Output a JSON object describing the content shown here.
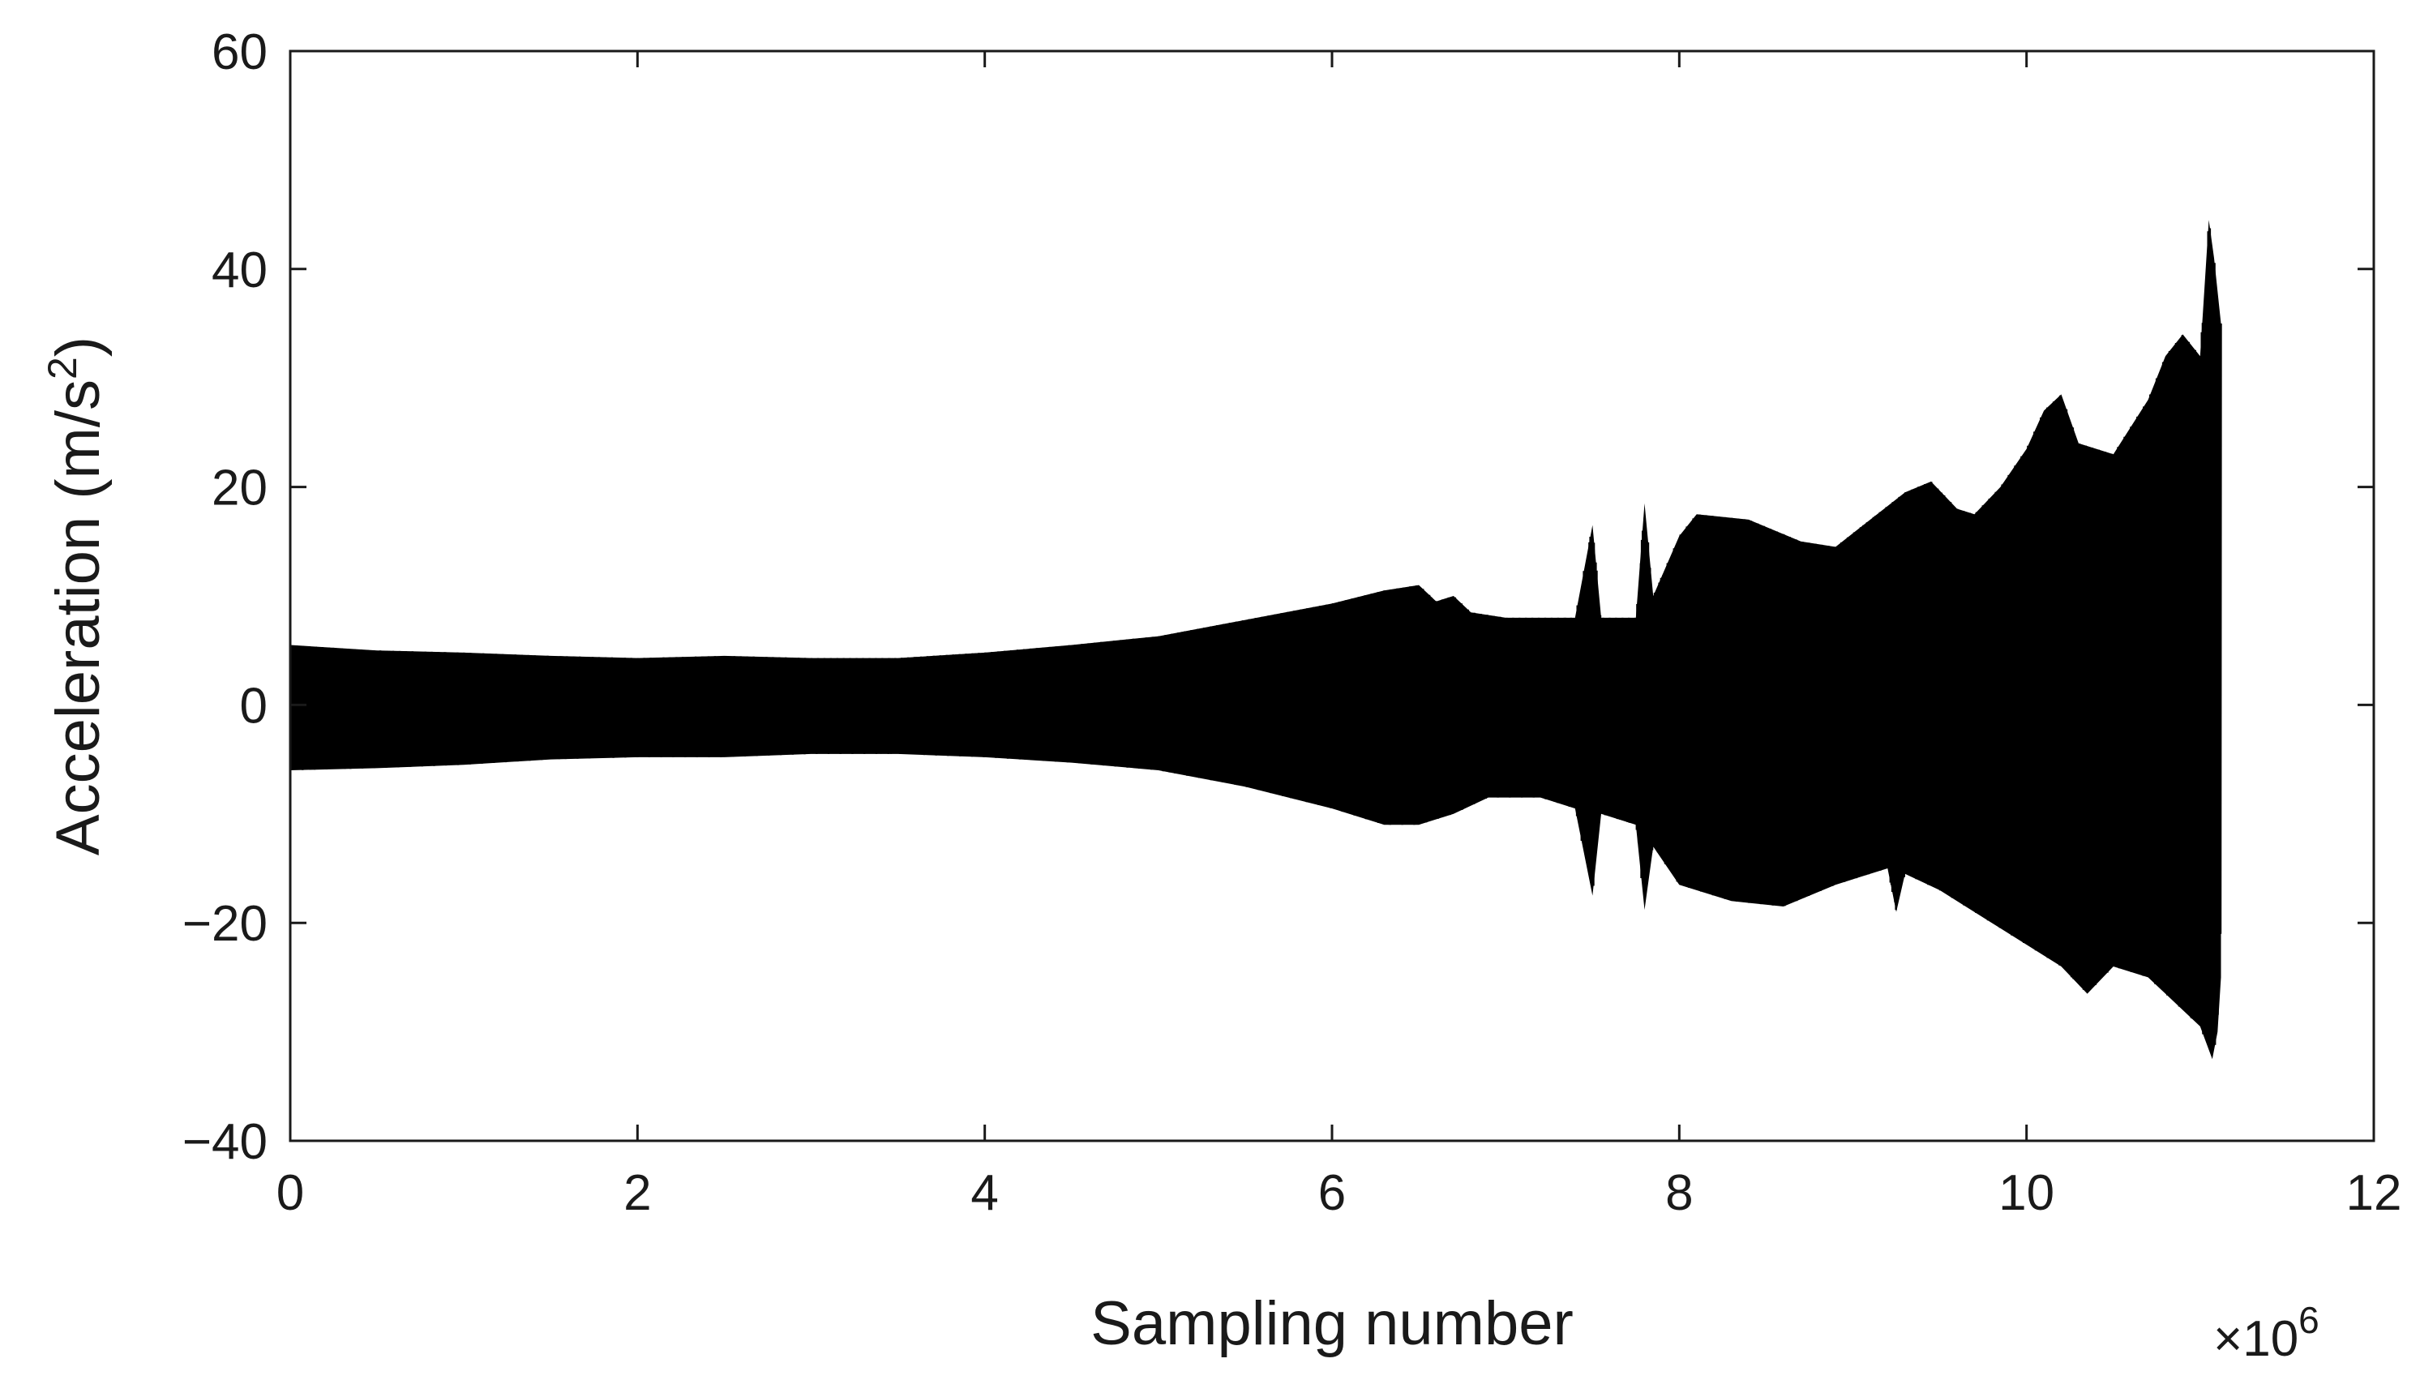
{
  "chart_data": {
    "type": "line",
    "title": "",
    "xlabel": "Sampling number",
    "ylabel": "Acceleration (m/s",
    "ylabel_sup": "2",
    "ylabel_close": ")",
    "x_multiplier": "×10",
    "x_multiplier_exp": "6",
    "xlim": [
      0,
      12
    ],
    "ylim": [
      -40,
      60
    ],
    "x_ticks": [
      0,
      2,
      4,
      6,
      8,
      10,
      12
    ],
    "y_ticks": [
      60,
      40,
      20,
      0,
      -20,
      -40
    ],
    "x_tick_labels": [
      "0",
      "2",
      "4",
      "6",
      "8",
      "10",
      "12"
    ],
    "y_tick_labels": [
      "60",
      "40",
      "20",
      "0",
      "−20",
      "−40"
    ],
    "grid": false,
    "legend": "none",
    "series": [
      {
        "style": "dense oscillating signal (envelope)",
        "color": "#000000",
        "upper_envelope": [
          [
            0.0,
            5.5
          ],
          [
            0.5,
            5.0
          ],
          [
            1.0,
            4.8
          ],
          [
            1.5,
            4.5
          ],
          [
            2.0,
            4.3
          ],
          [
            2.5,
            4.5
          ],
          [
            3.0,
            4.3
          ],
          [
            3.5,
            4.3
          ],
          [
            4.0,
            4.8
          ],
          [
            4.5,
            5.5
          ],
          [
            5.0,
            6.3
          ],
          [
            5.5,
            7.8
          ],
          [
            6.0,
            9.3
          ],
          [
            6.3,
            10.5
          ],
          [
            6.5,
            11.0
          ],
          [
            6.6,
            9.5
          ],
          [
            6.7,
            10.0
          ],
          [
            6.8,
            8.5
          ],
          [
            7.0,
            8.0
          ],
          [
            7.4,
            8.0
          ],
          [
            7.5,
            16.5
          ],
          [
            7.55,
            8.0
          ],
          [
            7.75,
            8.0
          ],
          [
            7.8,
            18.5
          ],
          [
            7.85,
            10.0
          ],
          [
            8.0,
            15.5
          ],
          [
            8.1,
            17.5
          ],
          [
            8.4,
            17.0
          ],
          [
            8.7,
            15.0
          ],
          [
            8.9,
            14.5
          ],
          [
            9.1,
            17.0
          ],
          [
            9.3,
            19.5
          ],
          [
            9.45,
            20.5
          ],
          [
            9.6,
            18.0
          ],
          [
            9.7,
            17.5
          ],
          [
            9.85,
            20.0
          ],
          [
            10.0,
            23.5
          ],
          [
            10.1,
            27.0
          ],
          [
            10.2,
            28.5
          ],
          [
            10.3,
            24.0
          ],
          [
            10.5,
            23.0
          ],
          [
            10.7,
            28.0
          ],
          [
            10.8,
            32.0
          ],
          [
            10.9,
            34.0
          ],
          [
            11.0,
            32.0
          ],
          [
            11.05,
            44.5
          ],
          [
            11.08,
            41.0
          ],
          [
            11.12,
            35.0
          ]
        ],
        "lower_envelope": [
          [
            0.0,
            -6.0
          ],
          [
            0.5,
            -5.8
          ],
          [
            1.0,
            -5.5
          ],
          [
            1.5,
            -5.0
          ],
          [
            2.0,
            -4.8
          ],
          [
            2.5,
            -4.8
          ],
          [
            3.0,
            -4.5
          ],
          [
            3.5,
            -4.5
          ],
          [
            4.0,
            -4.8
          ],
          [
            4.5,
            -5.3
          ],
          [
            5.0,
            -6.0
          ],
          [
            5.5,
            -7.5
          ],
          [
            6.0,
            -9.5
          ],
          [
            6.3,
            -11.0
          ],
          [
            6.5,
            -11.0
          ],
          [
            6.7,
            -10.0
          ],
          [
            6.9,
            -8.5
          ],
          [
            7.2,
            -8.5
          ],
          [
            7.4,
            -9.5
          ],
          [
            7.5,
            -17.5
          ],
          [
            7.55,
            -10.0
          ],
          [
            7.75,
            -11.0
          ],
          [
            7.8,
            -18.8
          ],
          [
            7.85,
            -13.0
          ],
          [
            8.0,
            -16.5
          ],
          [
            8.3,
            -18.0
          ],
          [
            8.6,
            -18.5
          ],
          [
            8.9,
            -16.5
          ],
          [
            9.2,
            -15.0
          ],
          [
            9.25,
            -19.0
          ],
          [
            9.3,
            -15.5
          ],
          [
            9.5,
            -17.0
          ],
          [
            9.8,
            -20.0
          ],
          [
            10.0,
            -22.0
          ],
          [
            10.2,
            -24.0
          ],
          [
            10.35,
            -26.5
          ],
          [
            10.5,
            -24.0
          ],
          [
            10.7,
            -25.0
          ],
          [
            10.9,
            -28.0
          ],
          [
            11.0,
            -29.5
          ],
          [
            11.07,
            -32.5
          ],
          [
            11.1,
            -30.0
          ],
          [
            11.12,
            -25.0
          ]
        ]
      }
    ]
  }
}
